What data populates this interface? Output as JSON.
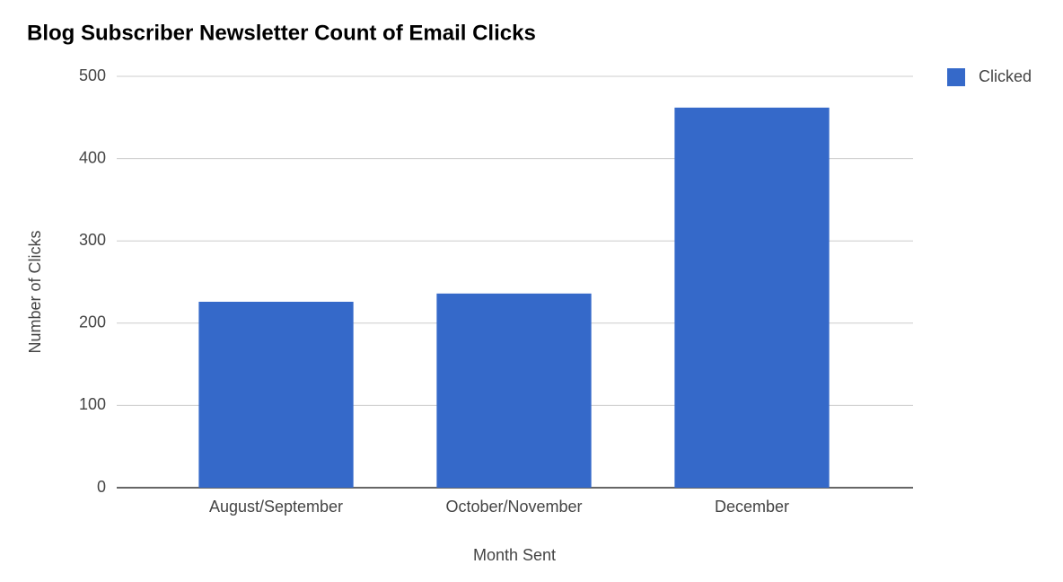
{
  "chart_data": {
    "type": "bar",
    "title": "Blog Subscriber Newsletter Count of Email Clicks",
    "x_label": "Month Sent",
    "y_label": "Number of Clicks",
    "categories": [
      "August/September",
      "October/November",
      "December"
    ],
    "series": [
      {
        "name": "Clicked",
        "color": "#3569c9",
        "values": [
          226,
          236,
          462
        ]
      }
    ],
    "ylim": [
      0,
      500
    ],
    "yticks": [
      0,
      100,
      200,
      300,
      400,
      500
    ],
    "grid": true,
    "legend": "top-right"
  }
}
